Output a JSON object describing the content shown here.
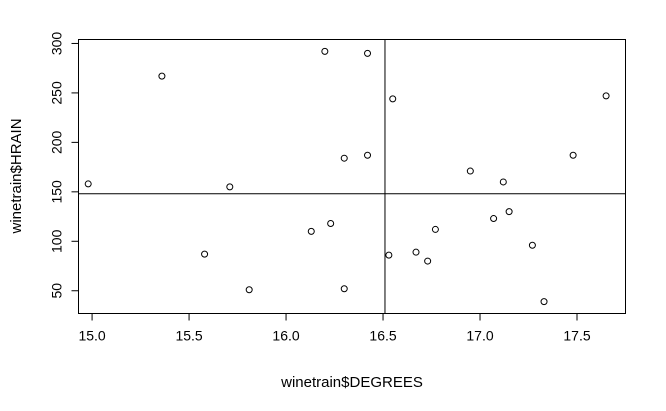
{
  "chart_data": {
    "type": "scatter",
    "title": "",
    "xlabel": "winetrain$DEGREES",
    "ylabel": "winetrain$HRAIN",
    "xlim": [
      14.93,
      17.75
    ],
    "ylim": [
      27,
      304
    ],
    "x_ticks": [
      15.0,
      15.5,
      16.0,
      16.5,
      17.0,
      17.5
    ],
    "x_tick_labels": [
      "15.0",
      "15.5",
      "16.0",
      "16.5",
      "17.0",
      "17.5"
    ],
    "y_ticks": [
      50,
      100,
      150,
      200,
      250,
      300
    ],
    "y_tick_labels": [
      "50",
      "100",
      "150",
      "200",
      "250",
      "300"
    ],
    "grid": false,
    "reference_lines": {
      "vertical_x": 16.51,
      "horizontal_y": 148
    },
    "points": [
      {
        "x": 14.98,
        "y": 158
      },
      {
        "x": 15.36,
        "y": 267
      },
      {
        "x": 15.58,
        "y": 87
      },
      {
        "x": 15.71,
        "y": 155
      },
      {
        "x": 15.81,
        "y": 51
      },
      {
        "x": 16.13,
        "y": 110
      },
      {
        "x": 16.2,
        "y": 292
      },
      {
        "x": 16.23,
        "y": 118
      },
      {
        "x": 16.3,
        "y": 184
      },
      {
        "x": 16.3,
        "y": 52
      },
      {
        "x": 16.42,
        "y": 290
      },
      {
        "x": 16.42,
        "y": 187
      },
      {
        "x": 16.53,
        "y": 86
      },
      {
        "x": 16.55,
        "y": 244
      },
      {
        "x": 16.67,
        "y": 89
      },
      {
        "x": 16.73,
        "y": 80
      },
      {
        "x": 16.77,
        "y": 112
      },
      {
        "x": 16.95,
        "y": 171
      },
      {
        "x": 17.07,
        "y": 123
      },
      {
        "x": 17.12,
        "y": 160
      },
      {
        "x": 17.15,
        "y": 130
      },
      {
        "x": 17.27,
        "y": 96
      },
      {
        "x": 17.33,
        "y": 39
      },
      {
        "x": 17.48,
        "y": 187
      },
      {
        "x": 17.65,
        "y": 247
      }
    ]
  }
}
